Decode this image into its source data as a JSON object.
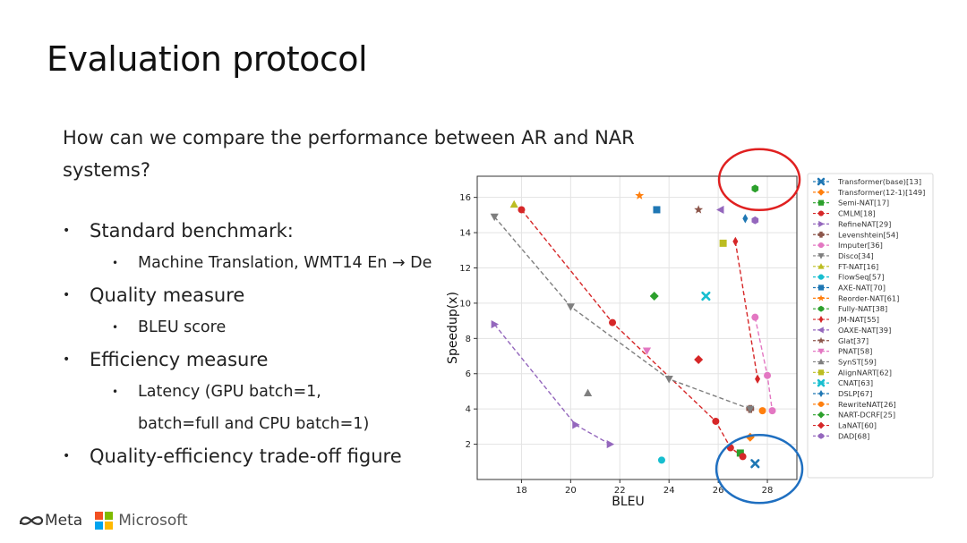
{
  "slide": {
    "title": "Evaluation protocol",
    "question": "How can we compare the performance between AR and NAR systems?"
  },
  "bullets": [
    {
      "text": "Standard benchmark:",
      "subs": [
        "Machine Translation, WMT14 En → De"
      ]
    },
    {
      "text": "Quality measure",
      "subs": [
        "BLEU score"
      ]
    },
    {
      "text": "Efficiency measure",
      "subs": [
        "Latency (GPU batch=1,",
        "batch=full and CPU batch=1)"
      ]
    },
    {
      "text": "Quality-efficiency trade-off figure",
      "subs": []
    }
  ],
  "footer": {
    "meta_label": "Meta",
    "microsoft_label": "Microsoft"
  },
  "colors": {
    "highlight_circle_top": "#e02020",
    "highlight_circle_bottom": "#1f6fc0"
  },
  "chart_data": {
    "type": "scatter",
    "xlabel": "BLEU",
    "ylabel": "Speedup(x)",
    "xlim": [
      16.2,
      29.2
    ],
    "ylim": [
      0,
      17.2
    ],
    "xticks": [
      18,
      20,
      22,
      24,
      26,
      28
    ],
    "yticks": [
      2,
      4,
      6,
      8,
      10,
      12,
      14,
      16
    ],
    "grid": true,
    "legend_position": "right-outside",
    "highlights": [
      {
        "x": 27.6,
        "y": 16.5,
        "color": "#e02020"
      },
      {
        "x": 27.6,
        "y": 1.0,
        "color": "#1f6fc0"
      }
    ],
    "series": [
      {
        "name": "Transformer(base)[13]",
        "color": "#1f77b4",
        "marker": "x",
        "points": [
          [
            27.5,
            0.9
          ]
        ]
      },
      {
        "name": "Transformer(12-1)[149]",
        "color": "#ff7f0e",
        "marker": "D",
        "points": [
          [
            27.3,
            2.4
          ]
        ]
      },
      {
        "name": "Semi-NAT[17]",
        "color": "#2ca02c",
        "marker": "s",
        "points": [
          [
            26.9,
            1.5
          ]
        ]
      },
      {
        "name": "CMLM[18]",
        "color": "#d62728",
        "marker": "o",
        "line": true,
        "points": [
          [
            18.0,
            15.3
          ],
          [
            21.7,
            8.9
          ],
          [
            25.9,
            3.3
          ],
          [
            26.5,
            1.8
          ],
          [
            27.0,
            1.3
          ]
        ]
      },
      {
        "name": "RefineNAT[29]",
        "color": "#9467bd",
        "marker": ">",
        "line": true,
        "points": [
          [
            16.9,
            8.8
          ],
          [
            20.2,
            3.1
          ],
          [
            21.6,
            2.0
          ]
        ]
      },
      {
        "name": "Levenshtein[54]",
        "color": "#8c564b",
        "marker": "P",
        "points": [
          [
            27.3,
            4.0
          ]
        ]
      },
      {
        "name": "Imputer[36]",
        "color": "#e377c2",
        "marker": "o",
        "line": true,
        "points": [
          [
            27.5,
            9.2
          ],
          [
            28.0,
            5.9
          ],
          [
            28.2,
            3.9
          ]
        ]
      },
      {
        "name": "Disco[34]",
        "color": "#7f7f7f",
        "marker": "v",
        "line": true,
        "points": [
          [
            16.9,
            14.9
          ],
          [
            20.0,
            9.8
          ],
          [
            24.0,
            5.7
          ],
          [
            27.3,
            4.0
          ]
        ]
      },
      {
        "name": "FT-NAT[16]",
        "color": "#bcbd22",
        "marker": "^",
        "points": [
          [
            17.7,
            15.6
          ]
        ]
      },
      {
        "name": "FlowSeq[57]",
        "color": "#17becf",
        "marker": "o",
        "points": [
          [
            23.7,
            1.1
          ]
        ]
      },
      {
        "name": "AXE-NAT[70]",
        "color": "#1f77b4",
        "marker": "s",
        "points": [
          [
            23.5,
            15.3
          ]
        ]
      },
      {
        "name": "Reorder-NAT[61]",
        "color": "#ff7f0e",
        "marker": "*",
        "points": [
          [
            22.8,
            16.1
          ]
        ]
      },
      {
        "name": "Fully-NAT[38]",
        "color": "#2ca02c",
        "marker": "h",
        "points": [
          [
            27.5,
            16.5
          ]
        ]
      },
      {
        "name": "JM-NAT[55]",
        "color": "#d62728",
        "marker": "d",
        "line": true,
        "points": [
          [
            26.7,
            13.5
          ],
          [
            27.6,
            5.7
          ]
        ]
      },
      {
        "name": "OAXE-NAT[39]",
        "color": "#9467bd",
        "marker": "<",
        "points": [
          [
            26.1,
            15.3
          ]
        ]
      },
      {
        "name": "Glat[37]",
        "color": "#8c564b",
        "marker": "*",
        "points": [
          [
            25.2,
            15.3
          ]
        ]
      },
      {
        "name": "PNAT[58]",
        "color": "#e377c2",
        "marker": "v",
        "points": [
          [
            23.1,
            7.3
          ]
        ]
      },
      {
        "name": "SynST[59]",
        "color": "#7f7f7f",
        "marker": "^",
        "points": [
          [
            20.7,
            4.9
          ]
        ]
      },
      {
        "name": "AlignNART[62]",
        "color": "#bcbd22",
        "marker": "s",
        "points": [
          [
            26.2,
            13.4
          ]
        ]
      },
      {
        "name": "CNAT[63]",
        "color": "#17becf",
        "marker": "x",
        "points": [
          [
            25.5,
            10.4
          ]
        ]
      },
      {
        "name": "DSLP[67]",
        "color": "#1f77b4",
        "marker": "d",
        "points": [
          [
            27.1,
            14.8
          ]
        ]
      },
      {
        "name": "RewriteNAT[26]",
        "color": "#ff7f0e",
        "marker": "o",
        "points": [
          [
            27.8,
            3.9
          ]
        ]
      },
      {
        "name": "NART-DCRF[25]",
        "color": "#2ca02c",
        "marker": "D",
        "points": [
          [
            23.4,
            10.4
          ]
        ]
      },
      {
        "name": "LaNAT[60]",
        "color": "#d62728",
        "marker": "D",
        "points": [
          [
            25.2,
            6.8
          ]
        ]
      },
      {
        "name": "DAD[68]",
        "color": "#9467bd",
        "marker": "h",
        "points": [
          [
            27.5,
            14.7
          ]
        ]
      }
    ]
  }
}
